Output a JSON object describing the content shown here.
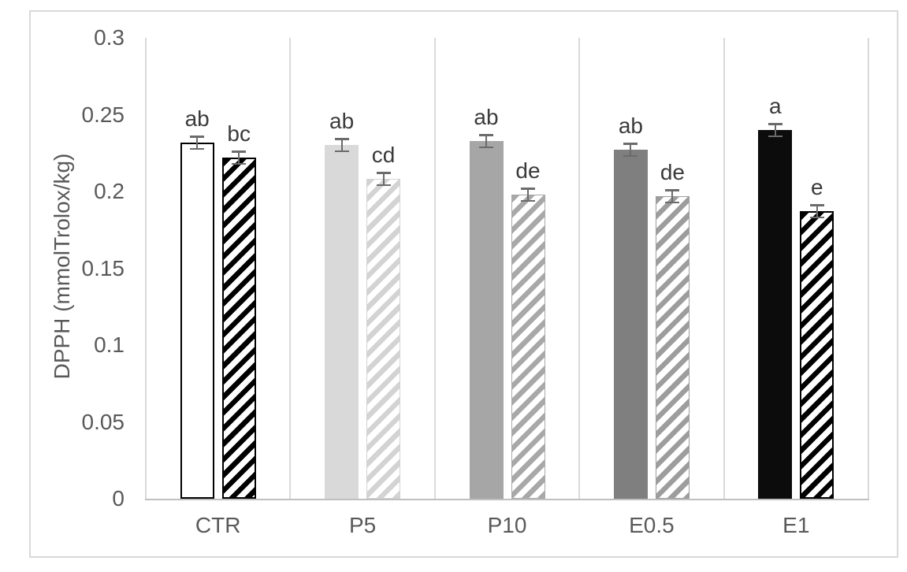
{
  "figure": {
    "background": "#ffffff",
    "frame_border_color": "#d9d9d9",
    "axis_text_color": "#595959",
    "gridline_color": "#d9d9d9",
    "axis_line_color": "#bfbfbf",
    "error_bar_color": "#6b6b6b",
    "annotation_color": "#3b3b3b"
  },
  "chart_data": {
    "type": "bar",
    "title": "",
    "xlabel": "",
    "ylabel": "DPPH (mmolTrolox/kg)",
    "ylim": [
      0,
      0.3
    ],
    "ytick_labels": [
      "0",
      "0.05",
      "0.1",
      "0.15",
      "0.2",
      "0.25",
      "0.3"
    ],
    "categories": [
      "CTR",
      "P5",
      "P10",
      "E0.5",
      "E1"
    ],
    "legend": "none",
    "grid": "vertical category separators",
    "series": [
      {
        "name": "solid-fill series",
        "pattern": "solid",
        "values": [
          0.232,
          0.23,
          0.233,
          0.227,
          0.24
        ],
        "errors": [
          0.004,
          0.004,
          0.004,
          0.004,
          0.004
        ],
        "sig_labels": [
          "ab",
          "ab",
          "ab",
          "ab",
          "a"
        ],
        "fill_colors": [
          "#ffffff",
          "#d9d9d9",
          "#a6a6a6",
          "#7f7f7f",
          "#0c0c0c"
        ],
        "border_colors": [
          "#000000",
          "#d9d9d9",
          "#a6a6a6",
          "#7f7f7f",
          "#0c0c0c"
        ],
        "border_widths": [
          2.5,
          0,
          0,
          0,
          0
        ]
      },
      {
        "name": "diagonal-hatch series",
        "pattern": "diagonal-hatch",
        "values": [
          0.222,
          0.208,
          0.198,
          0.197,
          0.187
        ],
        "errors": [
          0.004,
          0.004,
          0.004,
          0.004,
          0.004
        ],
        "sig_labels": [
          "bc",
          "cd",
          "de",
          "de",
          "e"
        ],
        "stripe_colors": [
          "#000000",
          "#d3d3d3",
          "#a8a8a8",
          "#9d9d9d",
          "#000000"
        ],
        "border_colors": [
          "#000000",
          "#d3d3d3",
          "#a8a8a8",
          "#9d9d9d",
          "#000000"
        ],
        "border_widths": [
          2.5,
          1.5,
          1.5,
          1.5,
          2.5
        ]
      }
    ]
  }
}
